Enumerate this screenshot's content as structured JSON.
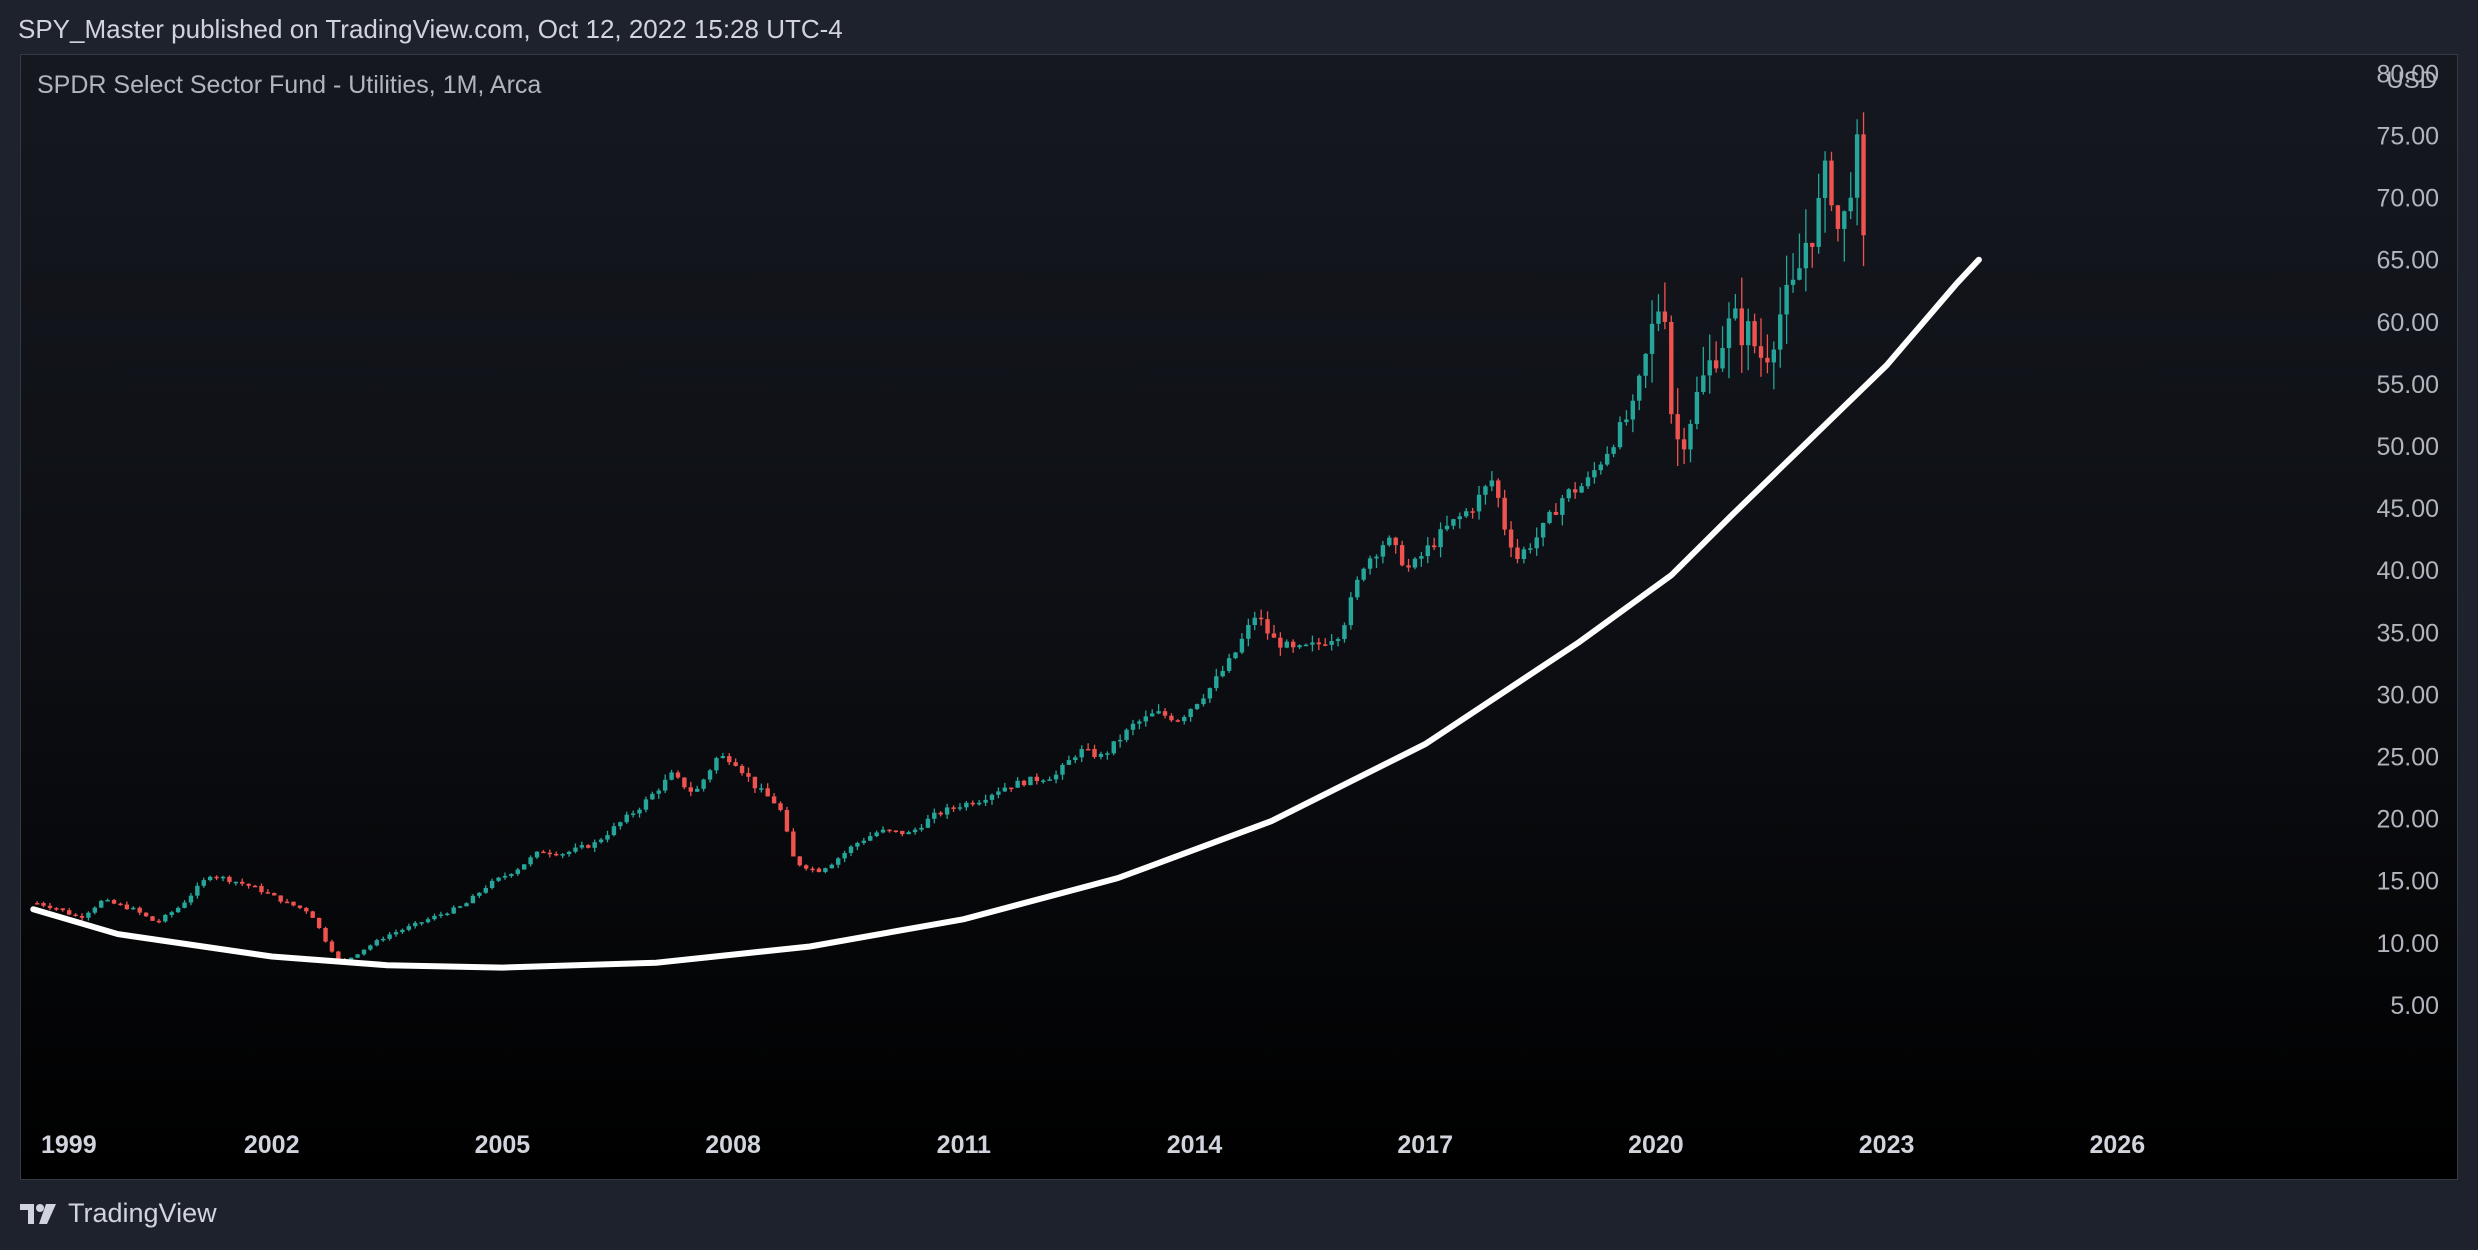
{
  "header": {
    "publisher_line": "SPY_Master published on TradingView.com, Oct 12, 2022 15:28 UTC-4"
  },
  "footer": {
    "brand_icon": "tradingview-logo-icon",
    "brand_name": "TradingView"
  },
  "colors": {
    "background": "#1e222d",
    "up_candle": "#26a69a",
    "down_candle": "#ef5350",
    "trend_curve": "#ffffff",
    "axis_text": "#b2b5be"
  },
  "chart_data": {
    "type": "candlestick",
    "title": "SPDR Select Sector Fund - Utilities, 1M, Arca",
    "currency": "USD",
    "y_ticks": [
      "80.00",
      "75.00",
      "70.00",
      "65.00",
      "60.00",
      "55.00",
      "50.00",
      "45.00",
      "40.00",
      "35.00",
      "30.00",
      "25.00",
      "20.00",
      "15.00",
      "10.00",
      "5.00"
    ],
    "x_ticks": [
      "1999",
      "2002",
      "2005",
      "2008",
      "2011",
      "2014",
      "2017",
      "2020",
      "2023",
      "2026"
    ],
    "xlim": [
      1999.0,
      2029.0
    ],
    "ylim": [
      0,
      82
    ],
    "grid": false,
    "price_series": [
      [
        1998.95,
        13.2
      ],
      [
        1999.2,
        12.8
      ],
      [
        1999.5,
        12.0
      ],
      [
        1999.8,
        13.4
      ],
      [
        2000.2,
        12.7
      ],
      [
        2000.5,
        11.6
      ],
      [
        2000.8,
        12.9
      ],
      [
        2001.2,
        15.5
      ],
      [
        2001.5,
        15.0
      ],
      [
        2001.8,
        14.4
      ],
      [
        2002.2,
        13.2
      ],
      [
        2002.5,
        12.5
      ],
      [
        2002.7,
        10.2
      ],
      [
        2002.9,
        8.3
      ],
      [
        2003.2,
        9.5
      ],
      [
        2003.5,
        10.6
      ],
      [
        2003.8,
        11.3
      ],
      [
        2004.2,
        12.3
      ],
      [
        2004.5,
        13.0
      ],
      [
        2004.8,
        14.6
      ],
      [
        2005.2,
        16.0
      ],
      [
        2005.5,
        17.4
      ],
      [
        2005.8,
        17.2
      ],
      [
        2006.2,
        18.0
      ],
      [
        2006.5,
        19.5
      ],
      [
        2006.8,
        21.0
      ],
      [
        2007.2,
        23.5
      ],
      [
        2007.5,
        22.0
      ],
      [
        2007.8,
        25.0
      ],
      [
        2008.0,
        24.8
      ],
      [
        2008.3,
        22.5
      ],
      [
        2008.6,
        21.0
      ],
      [
        2008.8,
        16.5
      ],
      [
        2009.1,
        15.8
      ],
      [
        2009.3,
        16.5
      ],
      [
        2009.6,
        18.0
      ],
      [
        2009.9,
        19.0
      ],
      [
        2010.3,
        18.8
      ],
      [
        2010.6,
        20.2
      ],
      [
        2010.9,
        21.0
      ],
      [
        2011.2,
        21.5
      ],
      [
        2011.5,
        22.5
      ],
      [
        2011.8,
        23.0
      ],
      [
        2012.2,
        23.5
      ],
      [
        2012.5,
        25.5
      ],
      [
        2012.8,
        25.0
      ],
      [
        2013.2,
        27.5
      ],
      [
        2013.5,
        28.5
      ],
      [
        2013.8,
        28.0
      ],
      [
        2014.2,
        30.5
      ],
      [
        2014.5,
        33.0
      ],
      [
        2014.8,
        36.5
      ],
      [
        2015.0,
        34.5
      ],
      [
        2015.3,
        33.5
      ],
      [
        2015.6,
        34.0
      ],
      [
        2015.9,
        35.0
      ],
      [
        2016.2,
        40.5
      ],
      [
        2016.5,
        42.5
      ],
      [
        2016.8,
        40.0
      ],
      [
        2017.0,
        41.5
      ],
      [
        2017.3,
        43.5
      ],
      [
        2017.6,
        45.0
      ],
      [
        2017.9,
        47.5
      ],
      [
        2018.0,
        44.0
      ],
      [
        2018.2,
        41.0
      ],
      [
        2018.5,
        43.0
      ],
      [
        2018.8,
        46.0
      ],
      [
        2019.1,
        47.0
      ],
      [
        2019.4,
        50.0
      ],
      [
        2019.7,
        53.0
      ],
      [
        2019.9,
        58.0
      ],
      [
        2020.1,
        63.0
      ],
      [
        2020.2,
        53.0
      ],
      [
        2020.3,
        50.0
      ],
      [
        2020.6,
        55.0
      ],
      [
        2020.8,
        58.0
      ],
      [
        2021.0,
        60.0
      ],
      [
        2021.2,
        59.0
      ],
      [
        2021.4,
        57.0
      ],
      [
        2021.6,
        60.5
      ],
      [
        2021.8,
        62.5
      ],
      [
        2021.95,
        66.5
      ],
      [
        2022.1,
        68.5
      ],
      [
        2022.25,
        72.5
      ],
      [
        2022.4,
        66.0
      ],
      [
        2022.55,
        72.5
      ],
      [
        2022.65,
        73.5
      ],
      [
        2022.7,
        65.5
      ],
      [
        2022.75,
        62.0
      ]
    ],
    "trend_curve": {
      "type": "curve",
      "color": "white",
      "points": [
        [
          1998.9,
          12.7
        ],
        [
          2000.0,
          10.7
        ],
        [
          2002.0,
          8.9
        ],
        [
          2003.5,
          8.2
        ],
        [
          2005.0,
          8.0
        ],
        [
          2007.0,
          8.4
        ],
        [
          2009.0,
          9.7
        ],
        [
          2011.0,
          11.9
        ],
        [
          2013.0,
          15.2
        ],
        [
          2015.0,
          19.8
        ],
        [
          2017.0,
          26.0
        ],
        [
          2019.0,
          34.2
        ],
        [
          2020.2,
          39.6
        ],
        [
          2021.0,
          44.5
        ],
        [
          2022.0,
          50.5
        ],
        [
          2023.0,
          56.5
        ],
        [
          2023.9,
          63.0
        ],
        [
          2024.2,
          65.0
        ]
      ]
    }
  }
}
